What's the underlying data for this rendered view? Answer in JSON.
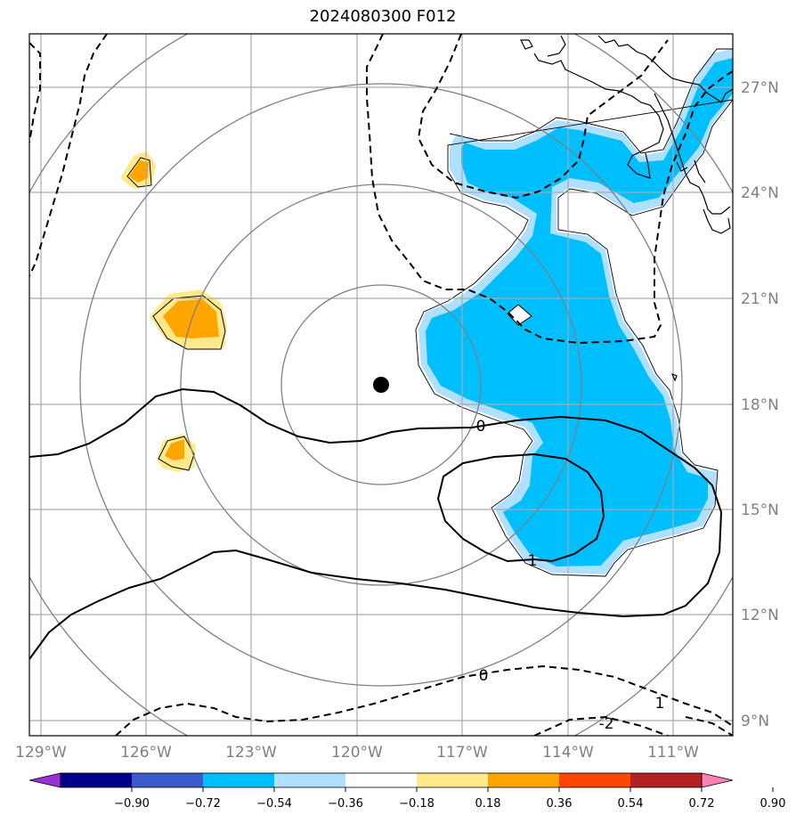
{
  "title": "2024080300 F012",
  "lon_labels": [
    "129°W",
    "126°W",
    "123°W",
    "120°W",
    "117°W",
    "114°W",
    "111°W"
  ],
  "lat_labels": [
    "27°N",
    "24°N",
    "21°N",
    "18°N",
    "15°N",
    "12°N",
    "9°N"
  ],
  "colorbar": {
    "tick_labels": [
      "−0.90",
      "−0.72",
      "−0.54",
      "−0.36",
      "−0.18",
      "0.18",
      "0.36",
      "0.54",
      "0.72",
      "0.90"
    ],
    "colors": [
      "#9b30d9",
      "#00008b",
      "#3a5bcc",
      "#00bfff",
      "#b0e0ff",
      "#ffffff",
      "#ffe98a",
      "#ffa500",
      "#ff4500",
      "#b22222",
      "#ff80b3"
    ]
  },
  "contour_labels": [
    "0",
    "1",
    "0",
    "1",
    "-2"
  ],
  "storm_center": {
    "lon": -119.9,
    "lat": 18.6
  },
  "colors": {
    "positive_fill": "#ffa500",
    "positive_light": "#ffe98a",
    "negative_fill": "#00bfff",
    "negative_light": "#b0e0ff"
  }
}
